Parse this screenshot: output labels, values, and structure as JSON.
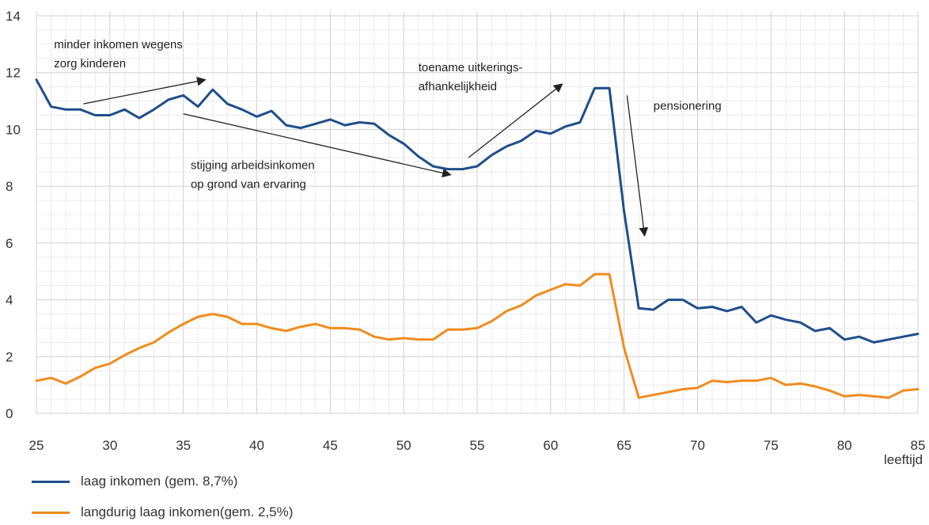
{
  "chart_data": {
    "type": "line",
    "title": "",
    "xlabel": "leeftijd",
    "ylabel": "",
    "xlim": [
      25,
      85
    ],
    "ylim": [
      0,
      14
    ],
    "xticks": [
      25,
      30,
      35,
      40,
      45,
      50,
      55,
      60,
      65,
      70,
      75,
      80,
      85
    ],
    "yticks": [
      0,
      2,
      4,
      6,
      8,
      10,
      12,
      14
    ],
    "grid": true,
    "legend_position": "bottom-left",
    "x": [
      25,
      26,
      27,
      28,
      29,
      30,
      31,
      32,
      33,
      34,
      35,
      36,
      37,
      38,
      39,
      40,
      41,
      42,
      43,
      44,
      45,
      46,
      47,
      48,
      49,
      50,
      51,
      52,
      53,
      54,
      55,
      56,
      57,
      58,
      59,
      60,
      61,
      62,
      63,
      64,
      65,
      66,
      67,
      68,
      69,
      70,
      71,
      72,
      73,
      74,
      75,
      76,
      77,
      78,
      79,
      80,
      81,
      82,
      83,
      84,
      85
    ],
    "series": [
      {
        "name": "laag inkomen (gem. 8,7%)",
        "color": "#1f4e8c",
        "values": [
          11.75,
          10.8,
          10.7,
          10.7,
          10.5,
          10.5,
          10.7,
          10.4,
          10.7,
          11.05,
          11.2,
          10.8,
          11.4,
          10.9,
          10.7,
          10.45,
          10.65,
          10.15,
          10.05,
          10.2,
          10.35,
          10.15,
          10.25,
          10.2,
          9.8,
          9.5,
          9.05,
          8.7,
          8.6,
          8.6,
          8.7,
          9.1,
          9.4,
          9.6,
          9.95,
          9.85,
          10.1,
          10.25,
          11.45,
          11.45,
          7.1,
          3.7,
          3.65,
          4.0,
          4.0,
          3.7,
          3.75,
          3.6,
          3.75,
          3.2,
          3.45,
          3.3,
          3.2,
          2.9,
          3.0,
          2.6,
          2.7,
          2.5,
          2.6,
          2.7,
          2.8
        ]
      },
      {
        "name": "langdurig laag inkomen(gem. 2,5%)",
        "color": "#f08c1e",
        "values": [
          1.15,
          1.25,
          1.05,
          1.3,
          1.6,
          1.75,
          2.05,
          2.3,
          2.5,
          2.85,
          3.15,
          3.4,
          3.5,
          3.4,
          3.15,
          3.15,
          3.0,
          2.9,
          3.05,
          3.15,
          3.0,
          3.0,
          2.95,
          2.7,
          2.6,
          2.65,
          2.6,
          2.6,
          2.95,
          2.95,
          3.0,
          3.25,
          3.6,
          3.8,
          4.15,
          4.35,
          4.55,
          4.5,
          4.9,
          4.9,
          2.3,
          0.55,
          0.65,
          0.75,
          0.85,
          0.9,
          1.15,
          1.1,
          1.15,
          1.15,
          1.25,
          1.0,
          1.05,
          0.95,
          0.8,
          0.6,
          0.65,
          0.6,
          0.55,
          0.8,
          0.85
        ]
      }
    ],
    "annotations": [
      {
        "lines": [
          "minder inkomen wegens",
          "zorg kinderen"
        ],
        "x": 26.2,
        "y": 12.85
      },
      {
        "lines": [
          "stijging arbeidsinkomen",
          "op grond van ervaring"
        ],
        "x": 35.5,
        "y": 8.6
      },
      {
        "lines": [
          "toename uitkerings-",
          "afhankelijkheid"
        ],
        "x": 51,
        "y": 12.05
      },
      {
        "lines": [
          "pensionering"
        ],
        "x": 67,
        "y": 10.7
      }
    ],
    "arrows": [
      {
        "from": [
          28.2,
          10.9
        ],
        "to": [
          36.5,
          11.75
        ]
      },
      {
        "from": [
          35,
          10.55
        ],
        "to": [
          53.2,
          8.4
        ]
      },
      {
        "from": [
          54.4,
          9.0
        ],
        "to": [
          60.8,
          11.6
        ]
      },
      {
        "from": [
          65.2,
          11.2
        ],
        "to": [
          66.4,
          6.25
        ]
      }
    ]
  }
}
